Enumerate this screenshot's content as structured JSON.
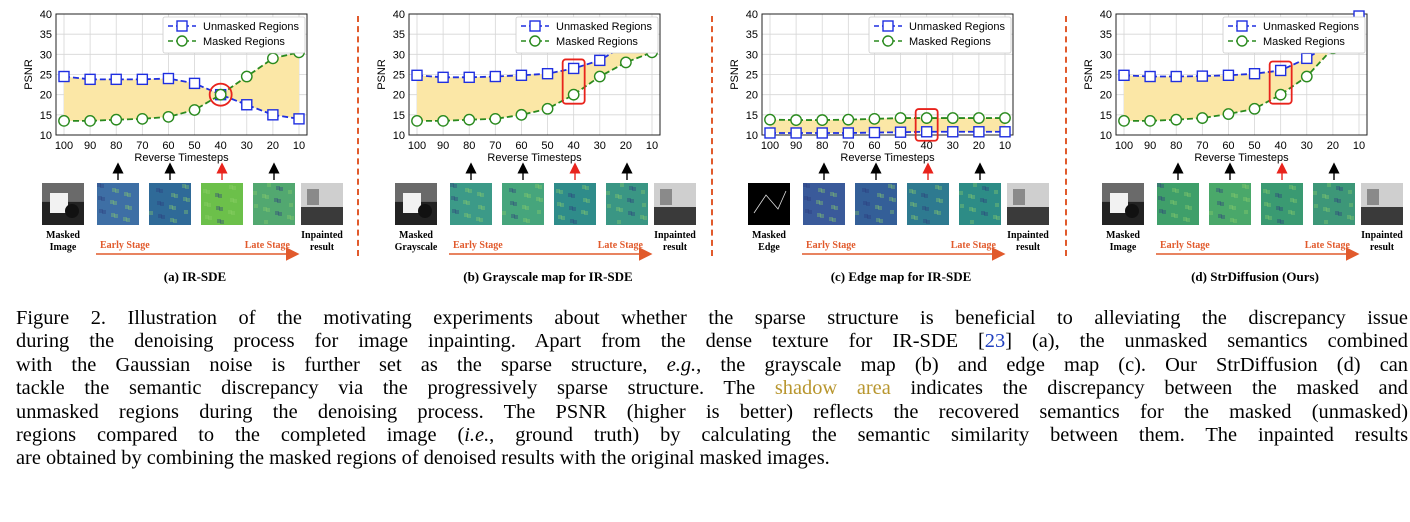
{
  "chart_data": [
    {
      "type": "line",
      "panel_label": "(a) IR-SDE",
      "xlabel": "Reverse Timesteps",
      "ylabel": "PSNR",
      "x": [
        100,
        90,
        80,
        70,
        60,
        50,
        40,
        30,
        20,
        10
      ],
      "ylim": [
        10,
        40
      ],
      "series": [
        {
          "name": "Unmasked Regions",
          "values": [
            24.5,
            23.8,
            23.8,
            23.8,
            24.0,
            22.8,
            20.0,
            17.5,
            15.0,
            14.0
          ]
        },
        {
          "name": "Masked Regions",
          "values": [
            13.5,
            13.5,
            13.8,
            14.0,
            14.5,
            16.2,
            20.0,
            24.5,
            29.0,
            30.5
          ]
        }
      ],
      "highlight": "circle",
      "highlight_x": 40
    },
    {
      "type": "line",
      "panel_label": "(b) Grayscale map for IR-SDE",
      "xlabel": "Reverse Timesteps",
      "ylabel": "PSNR",
      "x": [
        100,
        90,
        80,
        70,
        60,
        50,
        40,
        30,
        20,
        10
      ],
      "ylim": [
        10,
        40
      ],
      "series": [
        {
          "name": "Unmasked Regions",
          "values": [
            24.8,
            24.3,
            24.3,
            24.5,
            24.8,
            25.2,
            26.5,
            28.5,
            32.5,
            37.0
          ]
        },
        {
          "name": "Masked Regions",
          "values": [
            13.5,
            13.5,
            13.8,
            14.0,
            15.0,
            16.5,
            20.0,
            24.5,
            28.0,
            30.5
          ]
        }
      ],
      "highlight": "box",
      "highlight_x": 40
    },
    {
      "type": "line",
      "panel_label": "(c) Edge map for IR-SDE",
      "xlabel": "Reverse Timesteps",
      "ylabel": "PSNR",
      "x": [
        100,
        90,
        80,
        70,
        60,
        50,
        40,
        30,
        20,
        10
      ],
      "ylim": [
        10,
        40
      ],
      "series": [
        {
          "name": "Unmasked Regions",
          "values": [
            10.5,
            10.5,
            10.5,
            10.5,
            10.6,
            10.7,
            10.8,
            10.8,
            10.8,
            10.8
          ]
        },
        {
          "name": "Masked Regions",
          "values": [
            13.8,
            13.7,
            13.7,
            13.8,
            14.0,
            14.2,
            14.2,
            14.2,
            14.2,
            14.2
          ]
        }
      ],
      "highlight": "box",
      "highlight_x": 40
    },
    {
      "type": "line",
      "panel_label": "(d) StrDiffusion (Ours)",
      "xlabel": "Reverse Timesteps",
      "ylabel": "PSNR",
      "x": [
        100,
        90,
        80,
        70,
        60,
        50,
        40,
        30,
        20,
        10
      ],
      "ylim": [
        10,
        40
      ],
      "series": [
        {
          "name": "Unmasked Regions",
          "values": [
            24.8,
            24.5,
            24.5,
            24.6,
            24.8,
            25.2,
            26.0,
            29.0,
            33.0,
            39.5
          ]
        },
        {
          "name": "Masked Regions",
          "values": [
            13.5,
            13.5,
            13.8,
            14.2,
            15.2,
            16.5,
            20.0,
            24.5,
            31.5,
            36.0
          ]
        }
      ],
      "highlight": "box",
      "highlight_x": 40
    }
  ],
  "panels": [
    {
      "input_label": [
        "Masked",
        "Image"
      ],
      "input_style": "photo-dark",
      "early": "Early Stage",
      "late": "Late Stage",
      "result_label": [
        "Inpainted",
        "result"
      ],
      "thumbs": [
        "#3e6fa5",
        "#2f6a98",
        "#6cc04a",
        "#52a870"
      ]
    },
    {
      "input_label": [
        "Masked",
        "Grayscale"
      ],
      "input_style": "photo-dark",
      "early": "Early Stage",
      "late": "Late Stage",
      "result_label": [
        "Inpainted",
        "result"
      ],
      "thumbs": [
        "#3c9a88",
        "#46a57c",
        "#2f8c8a",
        "#3a9684"
      ]
    },
    {
      "input_label": [
        "Masked",
        "Edge"
      ],
      "input_style": "edge",
      "early": "Early Stage",
      "late": "Late Stage",
      "result_label": [
        "Inpainted",
        "result"
      ],
      "thumbs": [
        "#3a5a9a",
        "#345f98",
        "#2e7a90",
        "#2d8c86"
      ]
    },
    {
      "input_label": [
        "Masked",
        "Image"
      ],
      "input_style": "photo-dark",
      "early": "Early Stage",
      "late": "Late Stage",
      "result_label": [
        "Inpainted",
        "result"
      ],
      "thumbs": [
        "#3f9f6a",
        "#4aa86a",
        "#3a9a72",
        "#3d9778"
      ]
    }
  ],
  "caption": {
    "line1": "Figure 2. Illustration of the motivating experiments about whether the sparse structure is beneficial to alleviating the discrepancy issue",
    "line2a": "during the denoising process for image inpainting. Apart from the dense texture for IR-SDE [",
    "line2cite": "23",
    "line2b": "] (a), the unmasked semantics combined",
    "line3a": "with the Gaussian noise is further set as the sparse structure, ",
    "line3em": "e.g.",
    "line3b": ", the grayscale map (b) and edge map (c). Our StrDiffusion (d) can",
    "line4a": "tackle the semantic discrepancy via the progressively sparse structure. The ",
    "line4shadow": "shadow area",
    "line4b": " indicates the discrepancy between the masked and",
    "line5": "unmasked regions during the denoising process. The PSNR (higher is better) reflects the recovered semantics for the masked (unmasked)",
    "line6a": "regions compared to the completed image (",
    "line6em": "i.e.",
    "line6b": ", ground truth) by calculating the semantic similarity between them. The inpainted results",
    "line7": "are obtained by combining the masked regions of denoised results with the original masked images."
  },
  "colors": {
    "unmasked": "#1f2fe0",
    "masked": "#2a8a1e",
    "shade": "#fbe7a6",
    "highlight": "#e8231c",
    "arrow": "#e15a2c"
  }
}
